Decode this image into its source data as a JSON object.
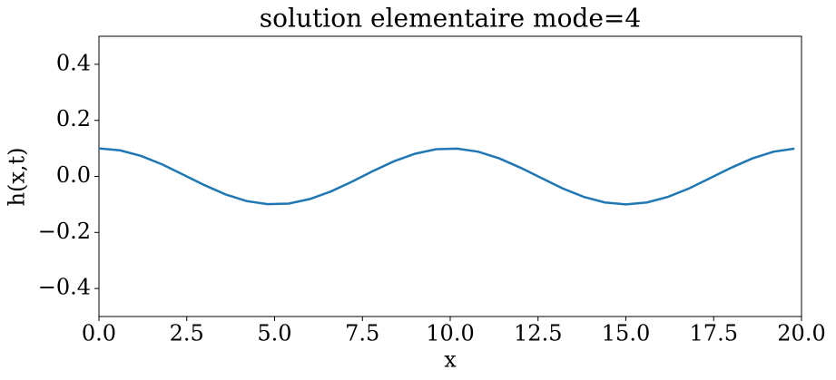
{
  "chart_data": {
    "type": "line",
    "title": "solution elementaire mode=4",
    "x_label": "x",
    "y_label": "h(x,t)",
    "x": [
      0,
      0.6,
      1.2,
      1.8,
      2.4,
      3.0,
      3.6,
      4.2,
      4.8,
      5.4,
      6.0,
      6.6,
      7.2,
      7.8,
      8.4,
      9.0,
      9.6,
      10.2,
      10.8,
      11.4,
      12.0,
      12.6,
      13.2,
      13.8,
      14.4,
      15.0,
      15.6,
      16.2,
      16.8,
      17.4,
      18.0,
      18.6,
      19.2,
      19.8
    ],
    "series": [
      {
        "color": "#1f77b4",
        "values": [
          0.1,
          0.093,
          0.073,
          0.043,
          0.006,
          -0.031,
          -0.064,
          -0.088,
          -0.099,
          -0.097,
          -0.081,
          -0.054,
          -0.019,
          0.019,
          0.054,
          0.081,
          0.097,
          0.099,
          0.088,
          0.064,
          0.031,
          -0.006,
          -0.043,
          -0.073,
          -0.093,
          -0.1,
          -0.093,
          -0.073,
          -0.043,
          -0.006,
          0.031,
          0.064,
          0.088,
          0.099
        ]
      }
    ],
    "xlim": [
      0,
      20
    ],
    "ylim": [
      -0.5,
      0.5
    ],
    "xticks": [
      {
        "value": 0,
        "label": "0.0"
      },
      {
        "value": 2.5,
        "label": "2.5"
      },
      {
        "value": 5,
        "label": "5.0"
      },
      {
        "value": 7.5,
        "label": "7.5"
      },
      {
        "value": 10,
        "label": "10.0"
      },
      {
        "value": 12.5,
        "label": "12.5"
      },
      {
        "value": 15,
        "label": "15.0"
      },
      {
        "value": 17.5,
        "label": "17.5"
      },
      {
        "value": 20,
        "label": "20.0"
      }
    ],
    "yticks": [
      {
        "value": -0.4,
        "label": "−0.4"
      },
      {
        "value": -0.2,
        "label": "−0.2"
      },
      {
        "value": 0,
        "label": "0.0"
      },
      0.2,
      0.4
    ],
    "grid": false
  }
}
